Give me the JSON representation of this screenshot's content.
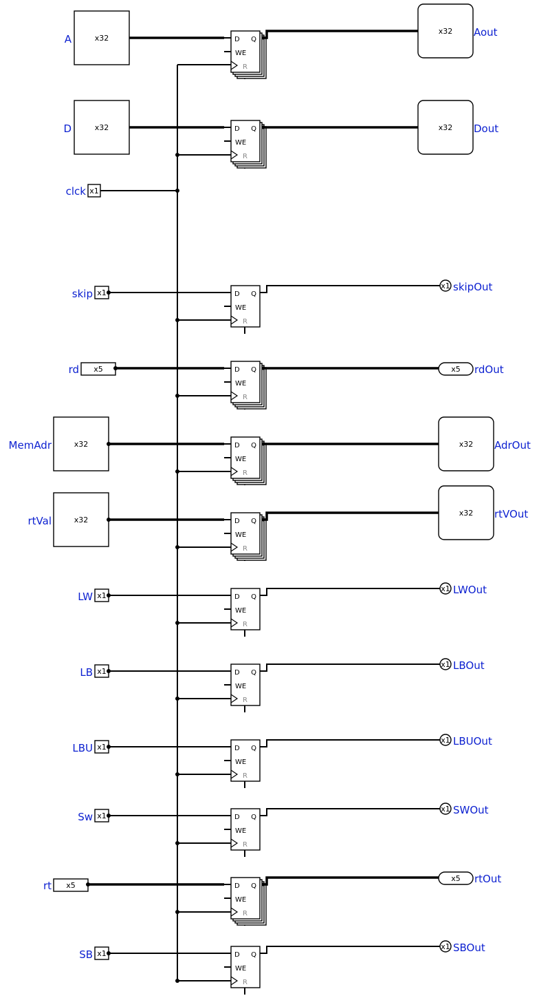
{
  "inputs": [
    {
      "name": "A",
      "width": "x32",
      "kind": "big"
    },
    {
      "name": "D",
      "width": "x32",
      "kind": "big"
    },
    {
      "name": "clck",
      "width": "x1",
      "kind": "small"
    },
    {
      "name": "skip",
      "width": "x1",
      "kind": "small"
    },
    {
      "name": "rd",
      "width": "x5",
      "kind": "mid"
    },
    {
      "name": "MemAdr",
      "width": "x32",
      "kind": "big"
    },
    {
      "name": "rtVal",
      "width": "x32",
      "kind": "big"
    },
    {
      "name": "LW",
      "width": "x1",
      "kind": "small"
    },
    {
      "name": "LB",
      "width": "x1",
      "kind": "small"
    },
    {
      "name": "LBU",
      "width": "x1",
      "kind": "small"
    },
    {
      "name": "Sw",
      "width": "x1",
      "kind": "small"
    },
    {
      "name": "rt",
      "width": "x5",
      "kind": "mid"
    },
    {
      "name": "SB",
      "width": "x1",
      "kind": "small"
    }
  ],
  "outputs": [
    {
      "name": "Aout",
      "width": "x32",
      "kind": "big"
    },
    {
      "name": "Dout",
      "width": "x32",
      "kind": "big"
    },
    {
      "name": "skipOut",
      "width": "x1",
      "kind": "small"
    },
    {
      "name": "rdOut",
      "width": "x5",
      "kind": "mid"
    },
    {
      "name": "AdrOut",
      "width": "x32",
      "kind": "big"
    },
    {
      "name": "rtVOut",
      "width": "x32",
      "kind": "big"
    },
    {
      "name": "LWOut",
      "width": "x1",
      "kind": "small"
    },
    {
      "name": "LBOut",
      "width": "x1",
      "kind": "small"
    },
    {
      "name": "LBUOut",
      "width": "x1",
      "kind": "small"
    },
    {
      "name": "SWOut",
      "width": "x1",
      "kind": "small"
    },
    {
      "name": "rtOut",
      "width": "x5",
      "kind": "mid"
    },
    {
      "name": "SBOut",
      "width": "x1",
      "kind": "small"
    }
  ],
  "register_pins": {
    "d": "D",
    "q": "Q",
    "we": "WE",
    "r": "R"
  },
  "registers": [
    {
      "input": "A",
      "output": "Aout",
      "multibit": true
    },
    {
      "input": "D",
      "output": "Dout",
      "multibit": true
    },
    {
      "input": "skip",
      "output": "skipOut",
      "multibit": false
    },
    {
      "input": "rd",
      "output": "rdOut",
      "multibit": true
    },
    {
      "input": "MemAdr",
      "output": "AdrOut",
      "multibit": true
    },
    {
      "input": "rtVal",
      "output": "rtVOut",
      "multibit": true
    },
    {
      "input": "LW",
      "output": "LWOut",
      "multibit": false
    },
    {
      "input": "LB",
      "output": "LBOut",
      "multibit": false
    },
    {
      "input": "LBU",
      "output": "LBUOut",
      "multibit": false
    },
    {
      "input": "Sw",
      "output": "SWOut",
      "multibit": false
    },
    {
      "input": "rt",
      "output": "rtOut",
      "multibit": true
    },
    {
      "input": "SB",
      "output": "SBOut",
      "multibit": false
    }
  ],
  "colors": {
    "label": "#0b1fd0",
    "wire": "#000000"
  }
}
